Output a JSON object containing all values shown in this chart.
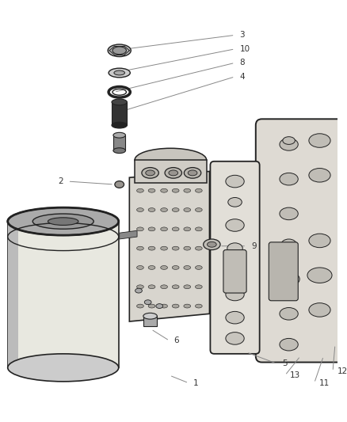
{
  "bg_color": "#ffffff",
  "fig_width": 4.38,
  "fig_height": 5.33,
  "dpi": 100,
  "ec": "#222222",
  "lc": "#888888",
  "label_color": "#333333",
  "label_fs": 7.5
}
